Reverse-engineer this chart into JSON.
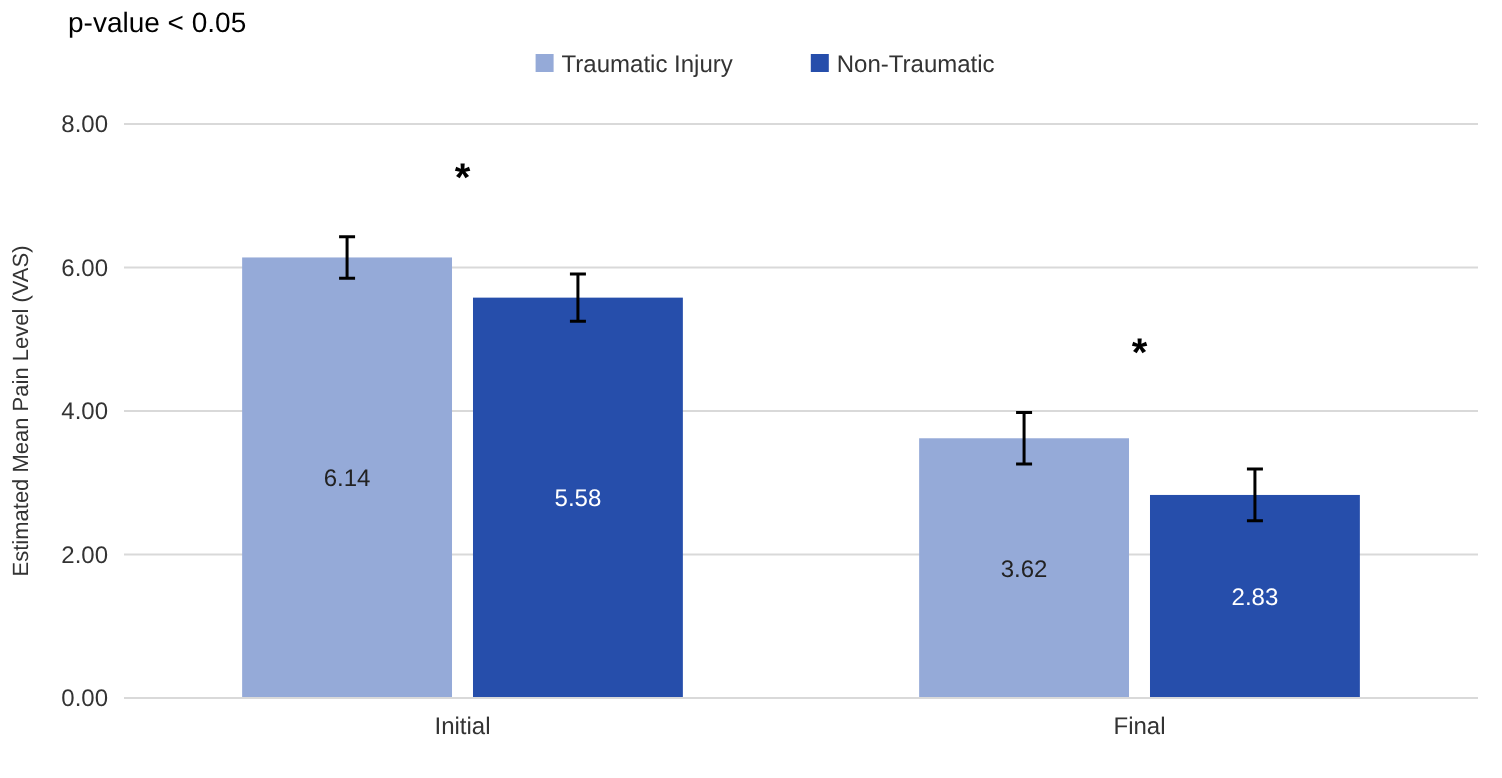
{
  "chart_data": {
    "type": "bar",
    "title": "p-value < 0.05",
    "ylabel": "Estimated Mean Pain Level (VAS)",
    "categories": [
      "Initial",
      "Final"
    ],
    "series": [
      {
        "name": "Traumatic Injury",
        "color": "#95aad8",
        "values": [
          6.14,
          3.62
        ],
        "errors": [
          0.29,
          0.36
        ]
      },
      {
        "name": "Non-Traumatic",
        "color": "#264eab",
        "values": [
          5.58,
          2.83
        ],
        "errors": [
          0.33,
          0.36
        ]
      }
    ],
    "ylim": [
      0,
      8
    ],
    "yticks": [
      {
        "value": 0,
        "label": "0.00"
      },
      {
        "value": 2,
        "label": "2.00"
      },
      {
        "value": 4,
        "label": "4.00"
      },
      {
        "value": 6,
        "label": "6.00"
      },
      {
        "value": 8,
        "label": "8.00"
      }
    ],
    "grid": "y",
    "legend": "top",
    "data_labels": true,
    "annotations": [
      "*",
      "*"
    ]
  }
}
